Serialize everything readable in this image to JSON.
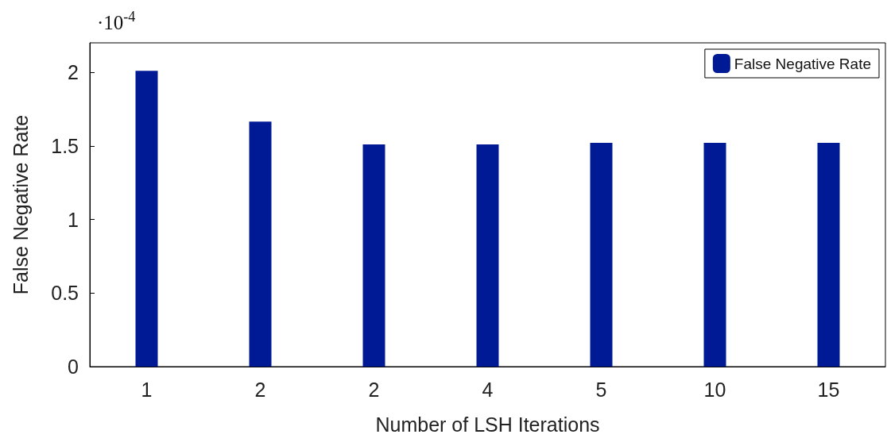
{
  "chart_data": {
    "type": "bar",
    "xlabel": "Number of LSH Iterations",
    "ylabel": "False Negative Rate",
    "categories": [
      "1",
      "2",
      "2",
      "4",
      "5",
      "10",
      "15"
    ],
    "series": [
      {
        "name": "False Negative Rate",
        "color": "#001a96",
        "values": [
          2.01,
          1.665,
          1.51,
          1.51,
          1.52,
          1.52,
          1.52
        ]
      }
    ],
    "ylim": [
      0,
      2.2
    ],
    "yticks": [
      0,
      0.5,
      1,
      1.5,
      2
    ],
    "grid": false,
    "legend": "top right",
    "annotations": [
      "·10$^{-4}$"
    ]
  }
}
